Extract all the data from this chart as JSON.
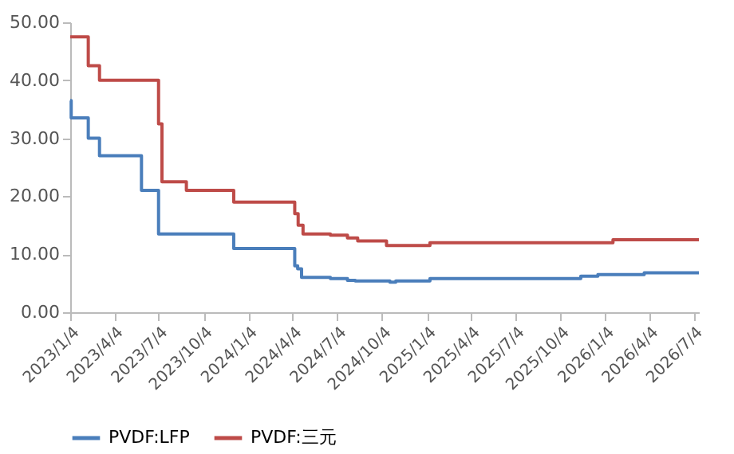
{
  "chart_data": {
    "type": "step",
    "xlim": [
      "2023-01-04",
      "2026-07-15"
    ],
    "xticks": [
      {
        "value": "2023-01-04",
        "label": "2023/1/4"
      },
      {
        "value": "2023-04-04",
        "label": "2023/4/4"
      },
      {
        "value": "2023-07-04",
        "label": "2023/7/4"
      },
      {
        "value": "2023-10-04",
        "label": "2023/10/4"
      },
      {
        "value": "2024-01-04",
        "label": "2024/1/4"
      },
      {
        "value": "2024-04-04",
        "label": "2024/4/4"
      },
      {
        "value": "2024-07-04",
        "label": "2024/7/4"
      },
      {
        "value": "2024-10-04",
        "label": "2024/10/4"
      },
      {
        "value": "2025-01-04",
        "label": "2025/1/4"
      },
      {
        "value": "2025-04-04",
        "label": "2025/4/4"
      },
      {
        "value": "2025-07-04",
        "label": "2025/7/4"
      },
      {
        "value": "2025-10-04",
        "label": "2025/10/4"
      },
      {
        "value": "2026-01-04",
        "label": "2026/1/4"
      },
      {
        "value": "2026-04-04",
        "label": "2026/4/4"
      },
      {
        "value": "2026-07-04",
        "label": "2026/7/4"
      }
    ],
    "ylim": [
      0,
      50
    ],
    "yticks": [
      {
        "value": 0,
        "label": "0.00"
      },
      {
        "value": 10,
        "label": "10.00"
      },
      {
        "value": 20,
        "label": "20.00"
      },
      {
        "value": 30,
        "label": "30.00"
      },
      {
        "value": 40,
        "label": "40.00"
      },
      {
        "value": 50,
        "label": "50.00"
      }
    ],
    "grid": false,
    "legend": "bottom",
    "line_style": "solid",
    "marker": "none",
    "series": [
      {
        "name": "PVDF:LFP",
        "color": "#4a7ebb",
        "x": [
          "2023-01-04",
          "2023-01-06",
          "2023-02-10",
          "2023-03-05",
          "2023-05-30",
          "2023-07-04",
          "2023-12-05",
          "2024-04-08",
          "2024-04-14",
          "2024-04-22",
          "2024-06-20",
          "2024-07-25",
          "2024-08-10",
          "2024-10-20",
          "2024-11-01",
          "2025-01-10",
          "2025-11-15",
          "2025-12-20",
          "2026-03-25",
          "2026-07-15"
        ],
        "values": [
          36.5,
          33.5,
          30,
          27,
          21,
          13.5,
          11,
          8,
          7.5,
          6,
          5.8,
          5.5,
          5.4,
          5.2,
          5.4,
          5.8,
          6.2,
          6.5,
          6.8,
          6.8
        ]
      },
      {
        "name": "PVDF:三元",
        "color": "#be4b48",
        "x": [
          "2023-01-04",
          "2023-02-10",
          "2023-03-05",
          "2023-07-04",
          "2023-07-11",
          "2023-08-30",
          "2023-12-05",
          "2024-04-08",
          "2024-04-15",
          "2024-04-25",
          "2024-06-20",
          "2024-07-25",
          "2024-08-15",
          "2024-10-13",
          "2025-01-10",
          "2026-01-20",
          "2026-07-15"
        ],
        "values": [
          47.5,
          42.5,
          40,
          32.5,
          22.5,
          21,
          19,
          17,
          15,
          13.5,
          13.3,
          12.8,
          12.3,
          11.5,
          12,
          12.5,
          12.5
        ]
      }
    ]
  }
}
